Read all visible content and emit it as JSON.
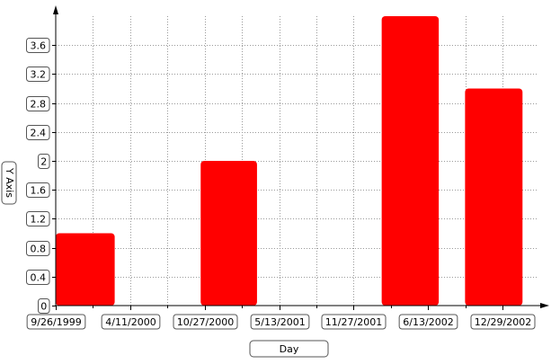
{
  "chart_data": {
    "type": "bar",
    "xlabel": "Day",
    "ylabel": "Y Axis",
    "ylim": [
      0,
      4
    ],
    "yticks": [
      0,
      0.4,
      0.8,
      1.2,
      1.6,
      2,
      2.4,
      2.8,
      3.2,
      3.6
    ],
    "ytick_labels": [
      "0",
      "0.4",
      "0.8",
      "1.2",
      "1.6",
      "2",
      "2.4",
      "2.8",
      "3.2",
      "3.6"
    ],
    "xlim": [
      "1999-09-26",
      "2003-04-01"
    ],
    "xticks": [
      "1999-09-26",
      "2000-04-11",
      "2000-10-27",
      "2001-05-13",
      "2001-11-27",
      "2002-06-13",
      "2002-12-29"
    ],
    "xtick_labels": [
      "9/26/1999",
      "4/11/2000",
      "10/27/2000",
      "5/13/2001",
      "11/27/2001",
      "6/13/2002",
      "12/29/2002"
    ],
    "bars": [
      {
        "start": "1999-09-26",
        "end": "2000-03-01",
        "value": 1
      },
      {
        "start": "2000-10-16",
        "end": "2001-03-15",
        "value": 2
      },
      {
        "start": "2002-02-10",
        "end": "2002-07-12",
        "value": 4
      },
      {
        "start": "2002-09-20",
        "end": "2003-02-20",
        "value": 3
      }
    ],
    "bar_color": "#ff0000",
    "grid": true,
    "legend": "none"
  }
}
